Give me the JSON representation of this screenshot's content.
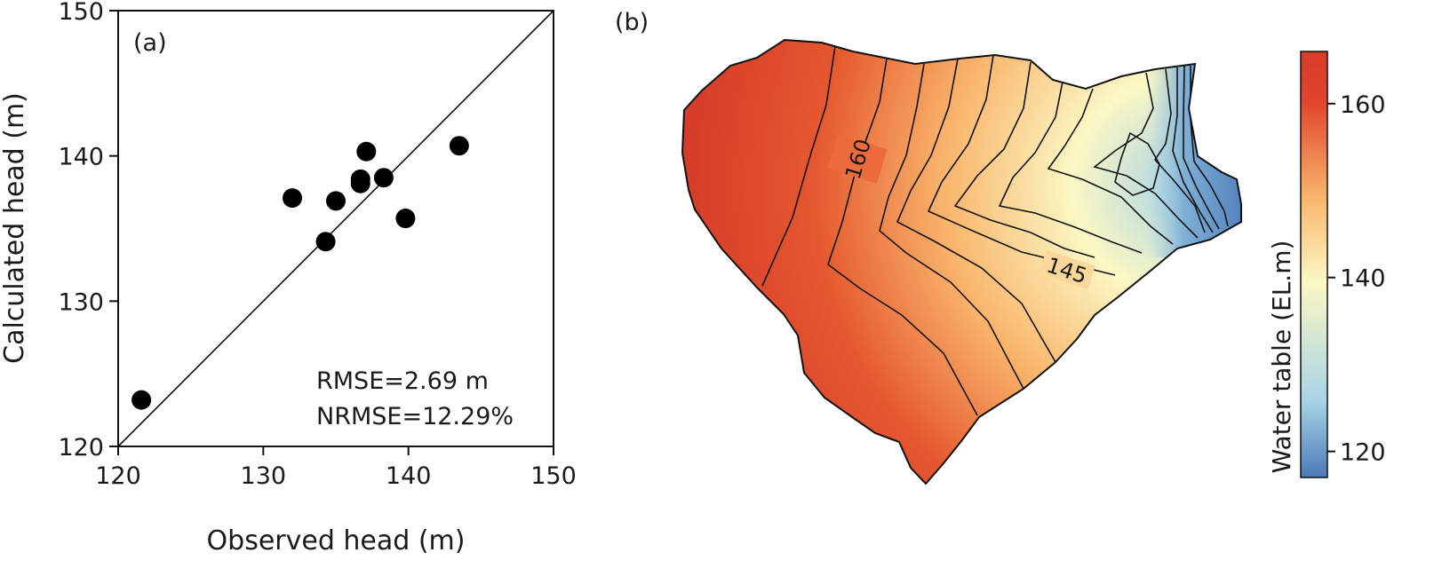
{
  "panel_a": {
    "label": "(a)",
    "annotations": [
      "RMSE=2.69 m",
      "NRMSE=12.29%"
    ]
  },
  "panel_b": {
    "label": "(b)",
    "contour_labels": [
      "160",
      "145"
    ],
    "colorbar": {
      "label": "Water table (EL.m)",
      "ticks": [
        120,
        140,
        160
      ],
      "range": [
        117,
        166
      ],
      "colors": [
        "#4a7ab8",
        "#a9d4e6",
        "#fbf8c4",
        "#f9b46a",
        "#e1452c",
        "#d63c29"
      ]
    }
  },
  "chart_data": [
    {
      "type": "scatter",
      "xlabel": "Observed head (m)",
      "ylabel": "Calculated head (m)",
      "xlim": [
        120,
        150
      ],
      "ylim": [
        120,
        150
      ],
      "xticks": [
        120,
        130,
        140,
        150
      ],
      "yticks": [
        120,
        130,
        140,
        150
      ],
      "reference_line": "1:1",
      "points": [
        {
          "x": 121.6,
          "y": 123.2
        },
        {
          "x": 132.0,
          "y": 137.1
        },
        {
          "x": 134.3,
          "y": 134.1
        },
        {
          "x": 135.0,
          "y": 136.9
        },
        {
          "x": 136.7,
          "y": 138.4
        },
        {
          "x": 136.7,
          "y": 138.1
        },
        {
          "x": 137.1,
          "y": 140.3
        },
        {
          "x": 138.3,
          "y": 138.5
        },
        {
          "x": 139.8,
          "y": 135.7
        },
        {
          "x": 143.5,
          "y": 140.7
        }
      ]
    },
    {
      "type": "heatmap",
      "colorbar_label": "Water table (EL.m)",
      "value_range": [
        117,
        166
      ],
      "ticks": [
        120,
        140,
        160
      ],
      "contour_labels": [
        160,
        145
      ]
    }
  ]
}
